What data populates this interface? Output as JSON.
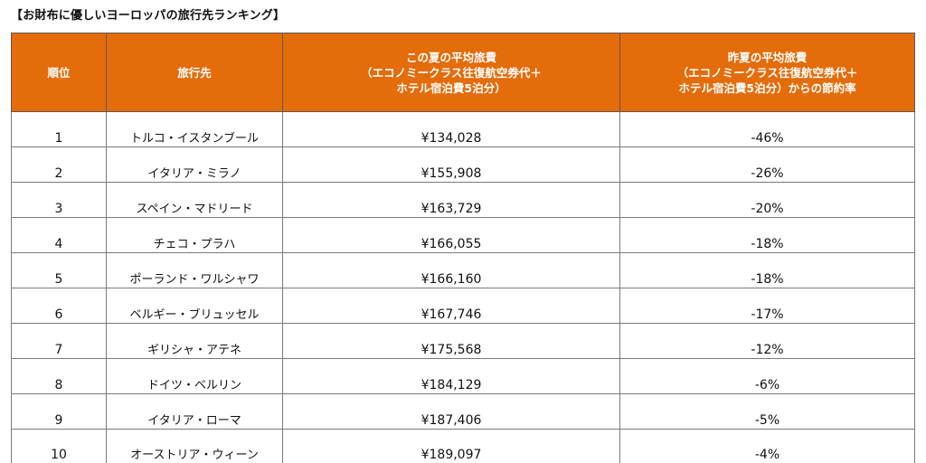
{
  "title": "【お財布に優しいヨーロッパの旅行先ランキング】",
  "headers": {
    "rank": "順位",
    "destination": "旅行先",
    "cost_line1": "この夏の平均旅費",
    "cost_line2": "（エコノミークラス往復航空券代＋",
    "cost_line3": "ホテル宿泊費5泊分）",
    "saving_line1": "昨夏の平均旅費",
    "saving_line2": "（エコノミークラス往復航空券代＋",
    "saving_line3": "ホテル宿泊費5泊分）からの節約率"
  },
  "rows": [
    {
      "rank": "1",
      "destination": "トルコ・イスタンブール",
      "cost": "¥134,028",
      "saving": "-46%"
    },
    {
      "rank": "2",
      "destination": "イタリア・ミラノ",
      "cost": "¥155,908",
      "saving": "-26%"
    },
    {
      "rank": "3",
      "destination": "スペイン・マドリード",
      "cost": "¥163,729",
      "saving": "-20%"
    },
    {
      "rank": "4",
      "destination": "チェコ・プラハ",
      "cost": "¥166,055",
      "saving": "-18%"
    },
    {
      "rank": "5",
      "destination": "ポーランド・ワルシャワ",
      "cost": "¥166,160",
      "saving": "-18%"
    },
    {
      "rank": "6",
      "destination": "ベルギー・ブリュッセル",
      "cost": "¥167,746",
      "saving": "-17%"
    },
    {
      "rank": "7",
      "destination": "ギリシャ・アテネ",
      "cost": "¥175,568",
      "saving": "-12%"
    },
    {
      "rank": "8",
      "destination": "ドイツ・ベルリン",
      "cost": "¥184,129",
      "saving": "-6%"
    },
    {
      "rank": "9",
      "destination": "イタリア・ローマ",
      "cost": "¥187,406",
      "saving": "-5%"
    },
    {
      "rank": "10",
      "destination": "オーストリア・ウィーン",
      "cost": "¥189,097",
      "saving": "-4%"
    }
  ],
  "colors": {
    "header_bg": "#e46c0a",
    "header_text": "#ffffff"
  }
}
